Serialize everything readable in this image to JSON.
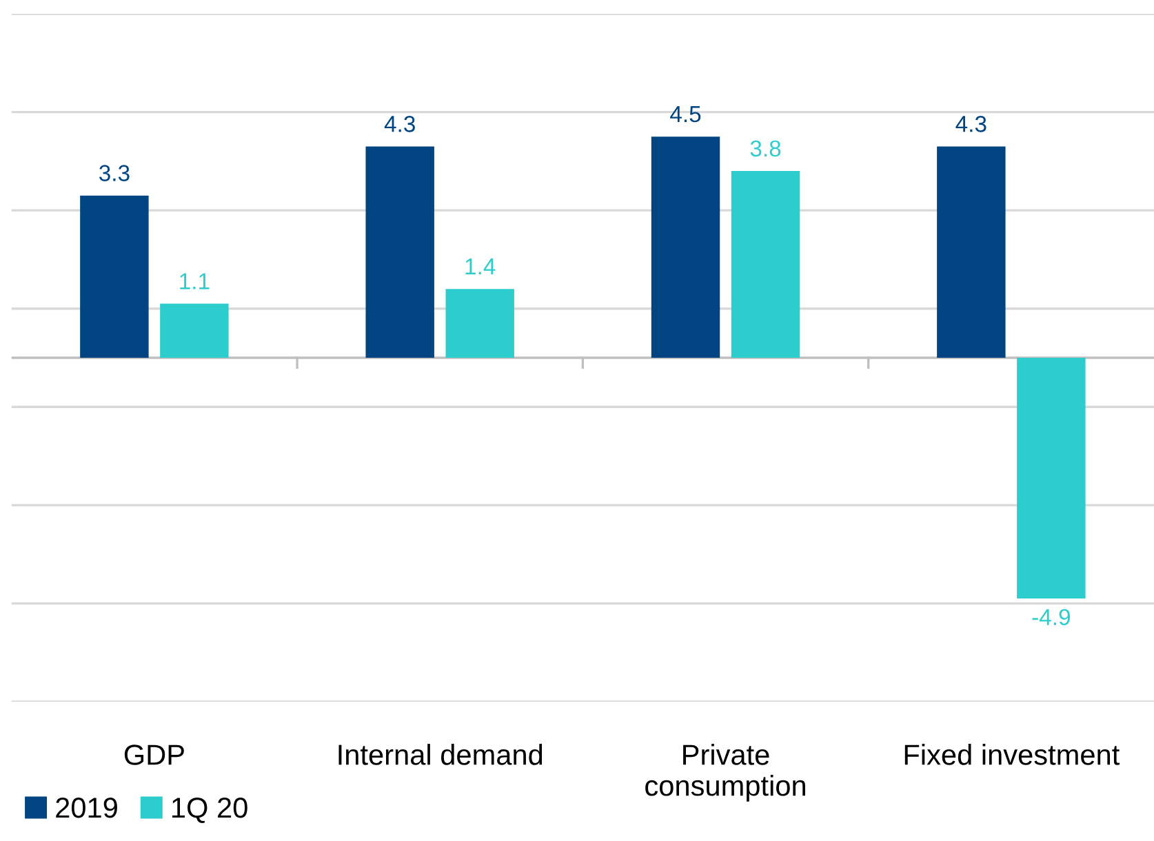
{
  "chart_data": {
    "type": "bar",
    "categories": [
      "GDP",
      "Internal demand",
      "Private\nconsumption",
      "Fixed investment"
    ],
    "series": [
      {
        "name": "2019",
        "color": "#004481",
        "values": [
          3.3,
          4.3,
          4.5,
          4.3
        ]
      },
      {
        "name": "1Q 20",
        "color": "#2dcccd",
        "values": [
          1.1,
          1.4,
          3.8,
          -4.9
        ]
      }
    ],
    "ylim": [
      -7,
      7
    ],
    "yticks": [
      {
        "value": -7,
        "label": null
      },
      {
        "value": -5,
        "label": null
      },
      {
        "value": -3,
        "label": null
      },
      {
        "value": -1,
        "label": null
      },
      {
        "value": 1,
        "label": null
      },
      {
        "value": 3,
        "label": null
      },
      {
        "value": 5,
        "label": null
      },
      {
        "value": 7,
        "label": null
      }
    ],
    "tick_labels": "x",
    "grid": "y",
    "legend": "bottom left",
    "data_labels": true
  }
}
